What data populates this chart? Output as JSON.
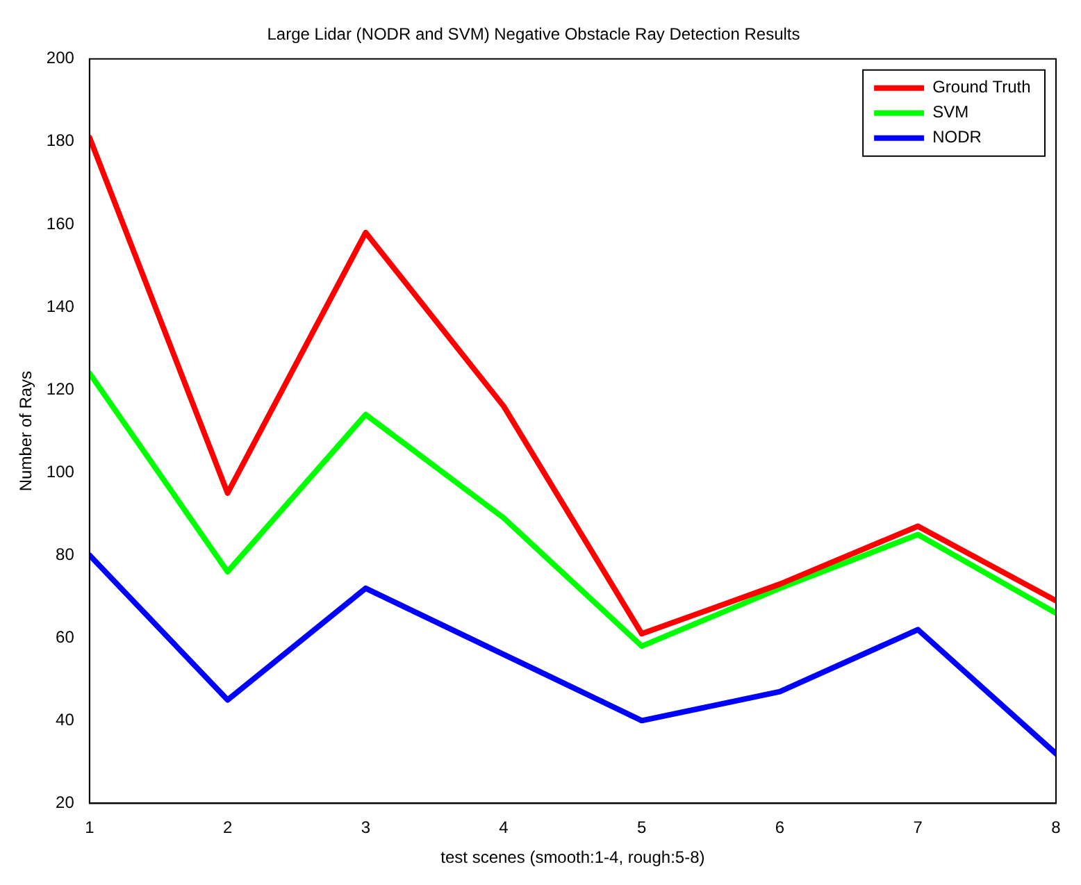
{
  "chart_data": {
    "type": "line",
    "title": "Large Lidar (NODR and SVM) Negative Obstacle Ray Detection Results",
    "xlabel": "test scenes (smooth:1-4, rough:5-8)",
    "ylabel": "Number of Rays",
    "x": [
      1,
      2,
      3,
      4,
      5,
      6,
      7,
      8
    ],
    "series": [
      {
        "name": "Ground Truth",
        "color": "#ff0000",
        "values": [
          181,
          95,
          158,
          116,
          61,
          73,
          87,
          69
        ]
      },
      {
        "name": "SVM",
        "color": "#00ff00",
        "values": [
          124,
          76,
          114,
          89,
          58,
          72,
          85,
          66
        ]
      },
      {
        "name": "NODR",
        "color": "#0000ff",
        "values": [
          80,
          45,
          72,
          56,
          40,
          47,
          62,
          32
        ]
      }
    ],
    "xlim": [
      1,
      8
    ],
    "xticks": [
      1,
      2,
      3,
      4,
      5,
      6,
      7,
      8
    ],
    "ylim": [
      20,
      200
    ],
    "yticks": [
      20,
      40,
      60,
      80,
      100,
      120,
      140,
      160,
      180,
      200
    ],
    "grid": false,
    "legend": "top right",
    "marker": "none",
    "line_style": "solid"
  }
}
